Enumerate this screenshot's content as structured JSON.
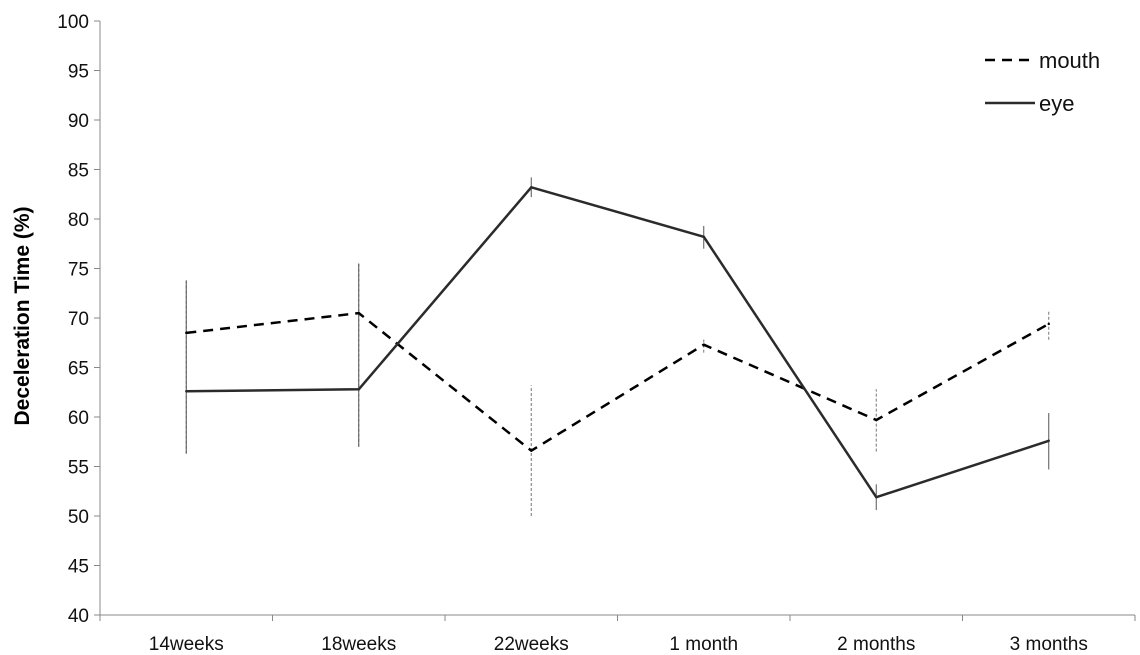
{
  "chart_data": {
    "type": "line",
    "title": "",
    "xlabel": "",
    "ylabel": "Deceleration Time (%)",
    "categories": [
      "14weeks",
      "18weeks",
      "22weeks",
      "1 month",
      "2 months",
      "3 months"
    ],
    "ylim": [
      40,
      100
    ],
    "yticks": [
      40,
      45,
      50,
      55,
      60,
      65,
      70,
      75,
      80,
      85,
      90,
      95,
      100
    ],
    "grid": false,
    "legend_position": "top-right",
    "series": [
      {
        "name": "mouth",
        "line_style": "dashed",
        "color": "#000000",
        "values": [
          68.5,
          70.5,
          56.6,
          67.3,
          59.7,
          69.4
        ],
        "error_low": [
          56.3,
          57.0,
          50.0,
          66.5,
          56.5,
          67.8
        ],
        "error_high": [
          73.8,
          75.5,
          63.2,
          68.0,
          62.8,
          70.8
        ]
      },
      {
        "name": "eye",
        "line_style": "solid",
        "color": "#2b2b2b",
        "values": [
          62.6,
          62.8,
          83.2,
          78.2,
          51.9,
          57.6
        ],
        "error_low": [
          56.3,
          57.0,
          82.2,
          77.0,
          50.6,
          54.7
        ],
        "error_high": [
          73.8,
          75.5,
          84.2,
          79.3,
          53.2,
          60.4
        ]
      }
    ]
  }
}
